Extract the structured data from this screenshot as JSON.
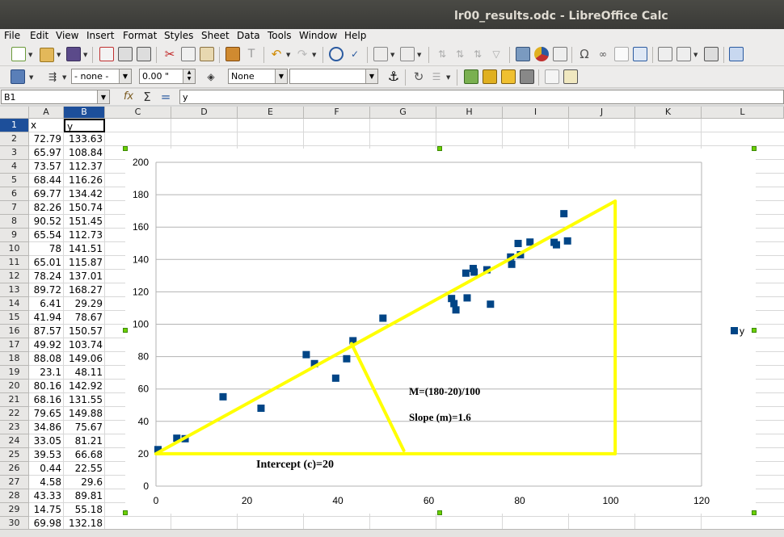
{
  "window": {
    "title": "lr00_results.odc - LibreOffice Calc"
  },
  "menu": [
    "File",
    "Edit",
    "View",
    "Insert",
    "Format",
    "Styles",
    "Sheet",
    "Data",
    "Tools",
    "Window",
    "Help"
  ],
  "toolbar2": {
    "line_style": "- none -",
    "line_width": "0.00 \"",
    "area_style": "None",
    "area_fill": ""
  },
  "formula_bar": {
    "name_box": "B1",
    "content": "y"
  },
  "columns": [
    "A",
    "B",
    "C",
    "D",
    "E",
    "F",
    "G",
    "H",
    "I",
    "J",
    "K",
    "L"
  ],
  "selected": {
    "column": "B",
    "row": "1"
  },
  "rows": [
    {
      "n": "1",
      "a": "x",
      "b": "y"
    },
    {
      "n": "2",
      "a": "72.79",
      "b": "133.63"
    },
    {
      "n": "3",
      "a": "65.97",
      "b": "108.84"
    },
    {
      "n": "4",
      "a": "73.57",
      "b": "112.37"
    },
    {
      "n": "5",
      "a": "68.44",
      "b": "116.26"
    },
    {
      "n": "6",
      "a": "69.77",
      "b": "134.42"
    },
    {
      "n": "7",
      "a": "82.26",
      "b": "150.74"
    },
    {
      "n": "8",
      "a": "90.52",
      "b": "151.45"
    },
    {
      "n": "9",
      "a": "65.54",
      "b": "112.73"
    },
    {
      "n": "10",
      "a": "78",
      "b": "141.51"
    },
    {
      "n": "11",
      "a": "65.01",
      "b": "115.87"
    },
    {
      "n": "12",
      "a": "78.24",
      "b": "137.01"
    },
    {
      "n": "13",
      "a": "89.72",
      "b": "168.27"
    },
    {
      "n": "14",
      "a": "6.41",
      "b": "29.29"
    },
    {
      "n": "15",
      "a": "41.94",
      "b": "78.67"
    },
    {
      "n": "16",
      "a": "87.57",
      "b": "150.57"
    },
    {
      "n": "17",
      "a": "49.92",
      "b": "103.74"
    },
    {
      "n": "18",
      "a": "88.08",
      "b": "149.06"
    },
    {
      "n": "19",
      "a": "23.1",
      "b": "48.11"
    },
    {
      "n": "20",
      "a": "80.16",
      "b": "142.92"
    },
    {
      "n": "21",
      "a": "68.16",
      "b": "131.55"
    },
    {
      "n": "22",
      "a": "79.65",
      "b": "149.88"
    },
    {
      "n": "23",
      "a": "34.86",
      "b": "75.67"
    },
    {
      "n": "24",
      "a": "33.05",
      "b": "81.21"
    },
    {
      "n": "25",
      "a": "39.53",
      "b": "66.68"
    },
    {
      "n": "26",
      "a": "0.44",
      "b": "22.55"
    },
    {
      "n": "27",
      "a": "4.58",
      "b": "29.6"
    },
    {
      "n": "28",
      "a": "43.33",
      "b": "89.81"
    },
    {
      "n": "29",
      "a": "14.75",
      "b": "55.18"
    },
    {
      "n": "30",
      "a": "69.98",
      "b": "132.18"
    }
  ],
  "annotations": {
    "slope_formula": "M=(180-20)/100",
    "slope_value": "Slope (m)=1.6",
    "intercept": "Intercept (c)=20"
  },
  "colors": {
    "series": "#004586",
    "annotation": "#ffff00",
    "selection": "#0a246a"
  },
  "chart_data": {
    "type": "scatter",
    "title": "",
    "xlabel": "",
    "ylabel": "",
    "xlim": [
      0,
      120
    ],
    "ylim": [
      0,
      200
    ],
    "xticks": [
      "0",
      "20",
      "40",
      "60",
      "80",
      "100",
      "120"
    ],
    "yticks": [
      "0",
      "20",
      "40",
      "60",
      "80",
      "100",
      "120",
      "140",
      "160",
      "180",
      "200"
    ],
    "grid": "horizontal",
    "legend": "right",
    "series": [
      {
        "name": "y",
        "marker": "square",
        "color": "#004586",
        "x": [
          72.79,
          65.97,
          73.57,
          68.44,
          69.77,
          82.26,
          90.52,
          65.54,
          78,
          65.01,
          78.24,
          89.72,
          6.41,
          41.94,
          87.57,
          49.92,
          88.08,
          23.1,
          80.16,
          68.16,
          79.65,
          34.86,
          33.05,
          39.53,
          0.44,
          4.58,
          43.33,
          14.75,
          69.98
        ],
        "y": [
          133.63,
          108.84,
          112.37,
          116.26,
          134.42,
          150.74,
          151.45,
          112.73,
          141.51,
          115.87,
          137.01,
          168.27,
          29.29,
          78.67,
          150.57,
          103.74,
          149.06,
          48.11,
          142.92,
          131.55,
          149.88,
          75.67,
          81.21,
          66.68,
          22.55,
          29.6,
          89.81,
          55.18,
          132.18
        ]
      }
    ],
    "overlay_lines": [
      {
        "from": [
          0,
          20
        ],
        "to": [
          101,
          176
        ]
      },
      {
        "from": [
          0,
          20
        ],
        "to": [
          101,
          20
        ]
      },
      {
        "from": [
          101,
          20
        ],
        "to": [
          101,
          176
        ]
      },
      {
        "from": [
          43,
          88
        ],
        "to": [
          54.5,
          22
        ]
      }
    ]
  }
}
